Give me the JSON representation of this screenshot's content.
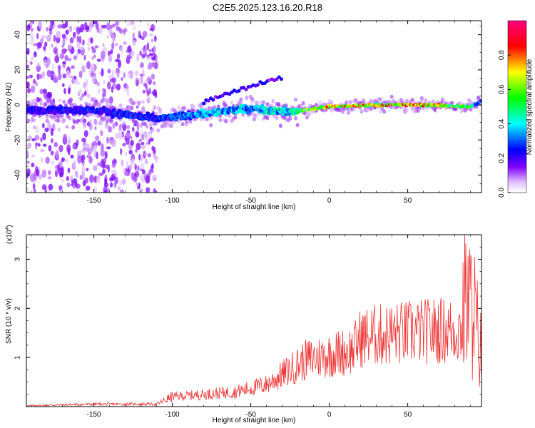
{
  "title": "C2E5.2025.123.16.20.R18",
  "chart_data": [
    {
      "type": "heatmap",
      "xlabel": "Height of straight line (km)",
      "ylabel": "Frequency (Hz)",
      "xlim": [
        -193,
        97
      ],
      "ylim": [
        -50,
        48
      ],
      "x_ticks": [
        -150,
        -100,
        -50,
        0,
        50
      ],
      "y_ticks": [
        -40,
        -20,
        0,
        20,
        40
      ],
      "colorbar": {
        "label": "Normalized spectral amplitude",
        "range": [
          0,
          1
        ],
        "ticks": [
          0.0,
          0.2,
          0.4,
          0.6,
          0.8
        ]
      },
      "ridge": {
        "description_points_height_km": [
          -193,
          -150,
          -110,
          -80,
          -50,
          -25,
          0,
          30,
          60,
          90,
          97
        ],
        "center_frequency_hz": [
          -3,
          -3,
          -8,
          -5,
          -2,
          -4,
          -1,
          0,
          0,
          -1,
          2
        ],
        "peak_amplitude": [
          0.25,
          0.3,
          0.3,
          0.4,
          0.45,
          0.5,
          0.85,
          0.8,
          0.95,
          0.6,
          0.3
        ]
      }
    },
    {
      "type": "line",
      "xlabel": "Height of straight line (km)",
      "ylabel": "SNR (10 * v/v)",
      "ylabel_scale": "(x10",
      "ylabel_scale_exp": "4",
      "ylabel_scale_close": ")",
      "xlim": [
        -193,
        97
      ],
      "ylim": [
        0,
        3.5
      ],
      "x_ticks": [
        -150,
        -100,
        -50,
        0,
        50
      ],
      "y_ticks": [
        1,
        2,
        3
      ],
      "series": [
        {
          "color": "#ee3333",
          "envelope_x": [
            -193,
            -150,
            -130,
            -110,
            -100,
            -80,
            -60,
            -40,
            -25,
            -15,
            0,
            15,
            20,
            30,
            50,
            70,
            80,
            88,
            92,
            97
          ],
          "envelope_y": [
            0.02,
            0.05,
            0.05,
            0.05,
            0.2,
            0.25,
            0.3,
            0.45,
            0.75,
            0.95,
            1.05,
            1.15,
            1.4,
            1.45,
            1.5,
            1.55,
            1.55,
            1.6,
            1.5,
            0.8
          ]
        }
      ]
    }
  ]
}
